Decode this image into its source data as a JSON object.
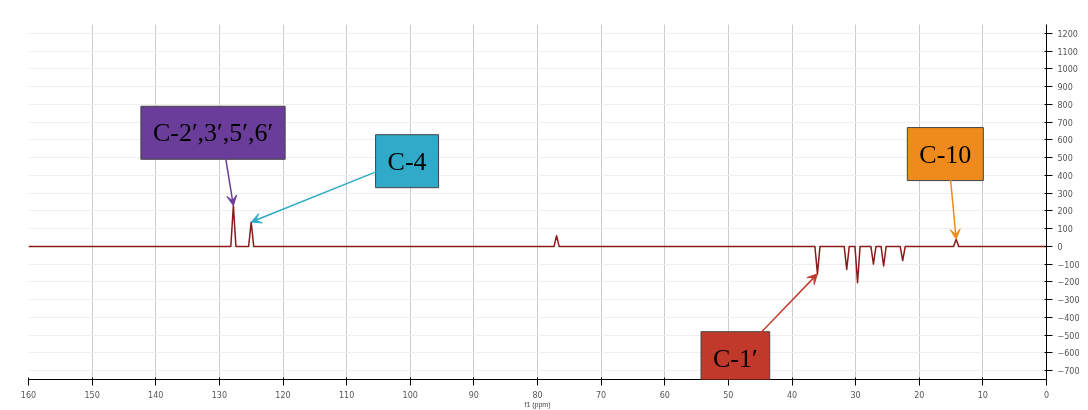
{
  "chart_data": {
    "type": "line",
    "xlabel": "f1 (ppm)",
    "x": [
      160,
      129,
      128.2,
      127.8,
      127.4,
      125.4,
      125.0,
      124.6,
      77.4,
      77.0,
      76.6,
      36.4,
      36.0,
      35.6,
      31.8,
      31.4,
      31.0,
      30.1,
      29.7,
      29.3,
      27.6,
      27.2,
      26.8,
      26.0,
      25.6,
      25.2,
      23.0,
      22.6,
      22.2,
      14.6,
      14.2,
      13.8,
      0
    ],
    "series": [
      {
        "color": "#8b1a1a",
        "values": [
          0,
          0,
          0,
          230,
          0,
          0,
          137,
          0,
          0,
          60,
          0,
          0,
          -155,
          0,
          0,
          -130,
          0,
          0,
          -205,
          0,
          0,
          -100,
          0,
          0,
          -110,
          0,
          0,
          -80,
          0,
          0,
          40,
          0,
          0
        ]
      }
    ],
    "xlim": [
      160,
      0
    ],
    "xticks": [
      160,
      150,
      140,
      130,
      120,
      110,
      100,
      90,
      80,
      70,
      60,
      50,
      40,
      30,
      20,
      10,
      0
    ],
    "ylim": [
      -750,
      1250
    ],
    "yticks": [
      -700,
      -600,
      -500,
      -400,
      -300,
      -200,
      -100,
      0,
      100,
      200,
      300,
      400,
      500,
      600,
      700,
      800,
      900,
      1000,
      1100,
      1200
    ],
    "grid": true,
    "annotations": [
      {
        "text": "C-2′,3′,5′,6′",
        "x": 127.8,
        "y": 230
      },
      {
        "text": "C-4",
        "x": 125.0,
        "y": 137
      },
      {
        "text": "C-10",
        "x": 14.2,
        "y": 40
      },
      {
        "text": "C-1′",
        "x": 36.0,
        "y": -155
      }
    ]
  }
}
